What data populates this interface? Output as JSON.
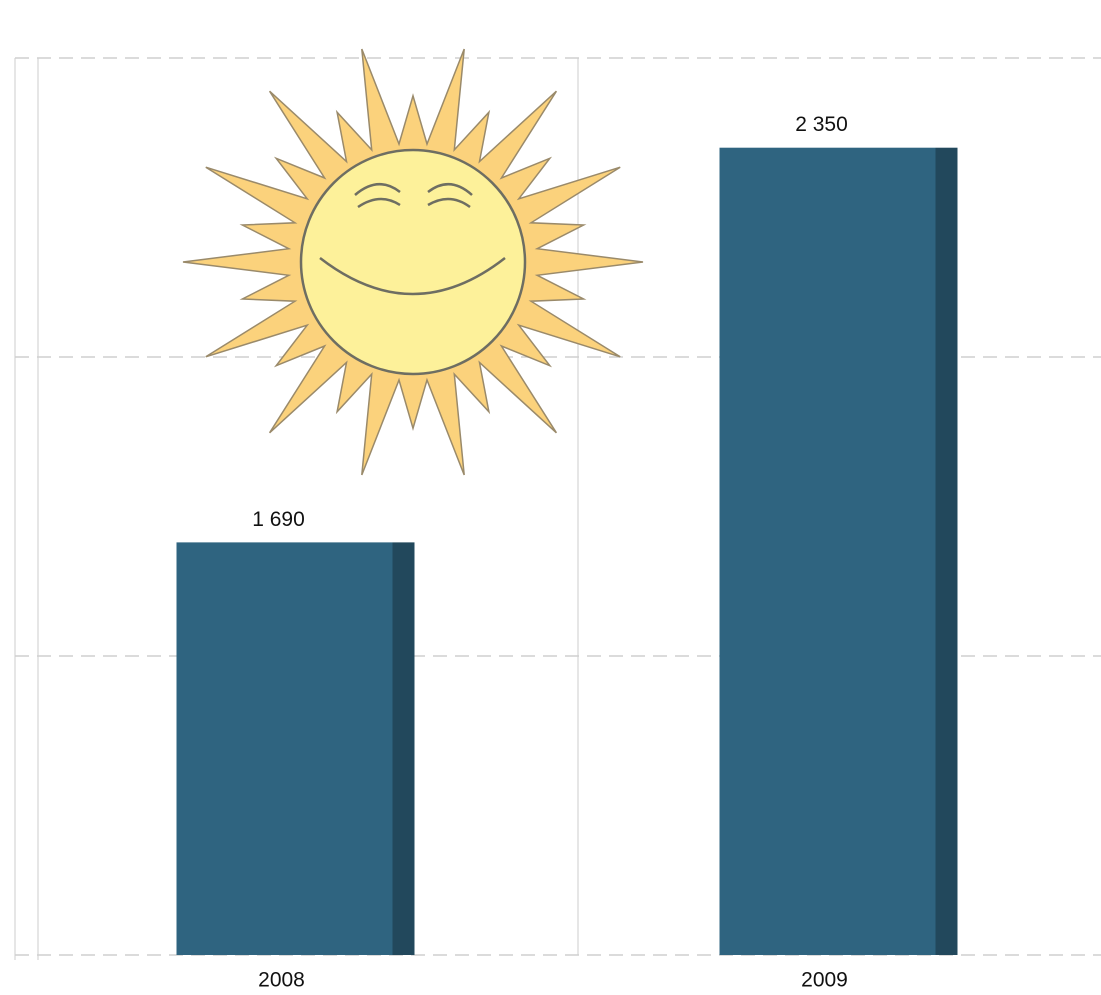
{
  "chart_data": {
    "type": "bar",
    "categories": [
      "2008",
      "2009"
    ],
    "values": [
      1690,
      2350
    ],
    "value_labels": [
      "1 690",
      "2 350"
    ],
    "color": "#2f6480",
    "ylim": [
      1000,
      2500
    ],
    "yticks": [
      1000,
      1500,
      2000,
      2500
    ],
    "grid": true
  }
}
